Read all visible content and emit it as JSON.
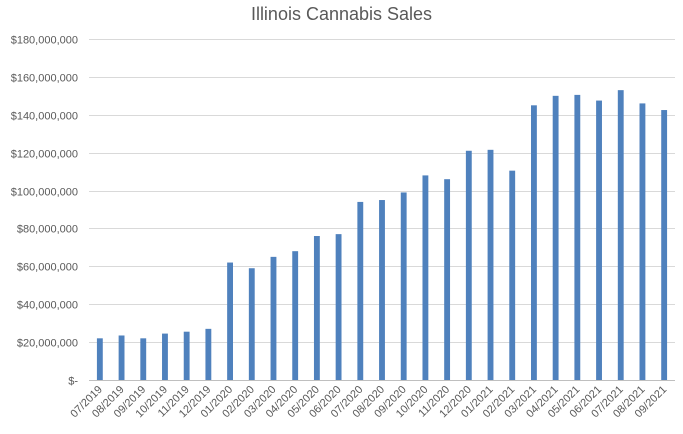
{
  "chart_data": {
    "type": "bar",
    "title": "Illinois Cannabis Sales",
    "xlabel": "",
    "ylabel": "",
    "ylim": [
      0,
      180000000
    ],
    "grid": true,
    "legend": "none",
    "bar_color": "#4f81bd",
    "y_ticks": [
      {
        "value": 0,
        "label": "$-"
      },
      {
        "value": 20000000,
        "label": "$20,000,000"
      },
      {
        "value": 40000000,
        "label": "$40,000,000"
      },
      {
        "value": 60000000,
        "label": "$60,000,000"
      },
      {
        "value": 80000000,
        "label": "$80,000,000"
      },
      {
        "value": 100000000,
        "label": "$100,000,000"
      },
      {
        "value": 120000000,
        "label": "$120,000,000"
      },
      {
        "value": 140000000,
        "label": "$140,000,000"
      },
      {
        "value": 160000000,
        "label": "$160,000,000"
      },
      {
        "value": 180000000,
        "label": "$180,000,000"
      }
    ],
    "categories": [
      "07/2019",
      "08/2019",
      "09/2019",
      "10/2019",
      "11/2019",
      "12/2019",
      "01/2020",
      "02/2020",
      "03/2020",
      "04/2020",
      "05/2020",
      "06/2020",
      "07/2020",
      "08/2020",
      "09/2020",
      "10/2020",
      "11/2020",
      "12/2020",
      "01/2021",
      "02/2021",
      "03/2021",
      "04/2021",
      "05/2021",
      "06/2021",
      "07/2021",
      "08/2021",
      "09/2021"
    ],
    "values": [
      22000000,
      23500000,
      22000000,
      24500000,
      25500000,
      27000000,
      62000000,
      59000000,
      65000000,
      68000000,
      76000000,
      77000000,
      94000000,
      95000000,
      99000000,
      108000000,
      106000000,
      121000000,
      121500000,
      110500000,
      145000000,
      150000000,
      150500000,
      147500000,
      153000000,
      146000000,
      142500000
    ]
  }
}
